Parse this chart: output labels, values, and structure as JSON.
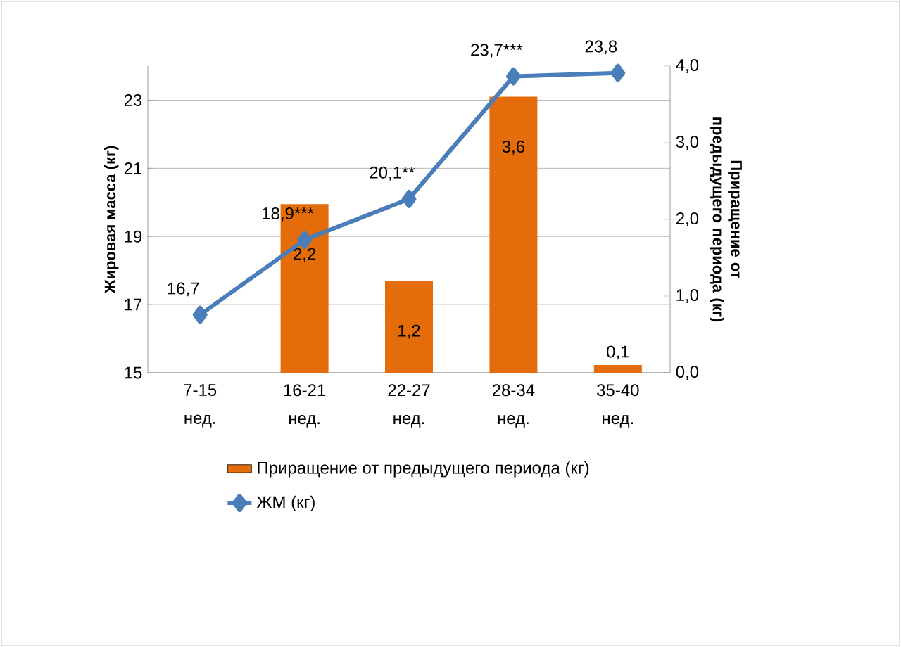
{
  "chart_data": {
    "type": "bar",
    "categories": [
      "7-15 нед.",
      "16-21 нед.",
      "22-27 нед.",
      "28-34 нед.",
      "35-40 нед."
    ],
    "ylabel": "Жировая масса (кг)",
    "y2label": "Приращение от предыдущего периода (кг)",
    "ylim": [
      15,
      24
    ],
    "yticks": [
      15,
      17,
      19,
      21,
      23
    ],
    "y2lim": [
      0,
      4
    ],
    "y2ticks": [
      {
        "value": 0,
        "label": "0,0"
      },
      {
        "value": 1,
        "label": "1,0"
      },
      {
        "value": 2,
        "label": "2,0"
      },
      {
        "value": 3,
        "label": "3,0"
      },
      {
        "value": 4,
        "label": "4,0"
      }
    ],
    "grid": "y",
    "legend": "bottom",
    "marker": "diamond",
    "series": [
      {
        "name": "Приращение от предыдущего периода (кг)",
        "axis": "y2",
        "color": "#e46c0a",
        "values": [
          null,
          2.2,
          1.2,
          3.6,
          0.1
        ],
        "value_labels": [
          null,
          "2,2",
          "1,2",
          "3,6",
          "0,1"
        ]
      },
      {
        "name": "ЖМ (кг)",
        "type": "line",
        "axis": "y",
        "color": "#4a7ebb",
        "values": [
          16.7,
          18.9,
          20.1,
          23.7,
          23.8
        ],
        "value_labels": [
          "16,7",
          "18,9***",
          "20,1**",
          "23,7***",
          "23,8"
        ]
      }
    ]
  }
}
